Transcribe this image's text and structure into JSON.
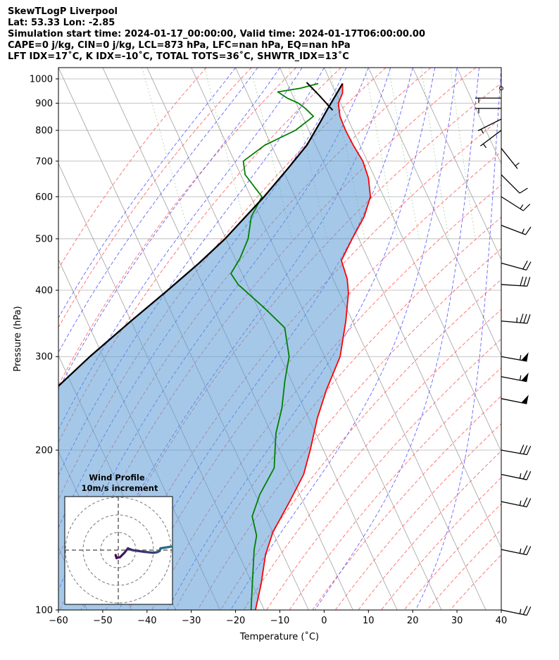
{
  "header": {
    "line1": "SkewTLogP Liverpool",
    "line2": "Lat: 53.33   Lon: -2.85",
    "line3": "Simulation start time: 2024-01-17_00:00:00, Valid time: 2024-01-17T06:00:00.00",
    "line4": "CAPE=0 j/kg, CIN=0 j/kg, LCL=873 hPa, LFC=nan hPa, EQ=nan hPa",
    "line5": "LFT IDX=17˚C, K IDX=-10˚C, TOTAL TOTS=36˚C, SHWTR_IDX=13˚C"
  },
  "chart_data": {
    "type": "line",
    "title": "SkewTLogP Liverpool",
    "xlabel": "Temperature (˚C)",
    "ylabel": "Pressure (hPa)",
    "xlim": [
      -60,
      40
    ],
    "ylim": [
      1050,
      100
    ],
    "y_scale": "log",
    "skew": true,
    "grid": true,
    "x_ticks": [
      "−60",
      "−50",
      "−40",
      "−30",
      "−20",
      "−10",
      "0",
      "10",
      "20",
      "30",
      "40"
    ],
    "y_ticks": [
      "100",
      "200",
      "300",
      "400",
      "500",
      "600",
      "700",
      "800",
      "900",
      "1000"
    ],
    "series": [
      {
        "name": "",
        "color": "#ff0000",
        "points": [
          [
            2.5,
            980
          ],
          [
            1.5,
            940
          ],
          [
            -0.5,
            900
          ],
          [
            -1.5,
            850
          ],
          [
            -1.7,
            800
          ],
          [
            -1.5,
            750
          ],
          [
            -1.0,
            700
          ],
          [
            -1.5,
            650
          ],
          [
            -3.0,
            600
          ],
          [
            -6.5,
            550
          ],
          [
            -11.5,
            500
          ],
          [
            -16.2,
            455
          ],
          [
            -16.8,
            420
          ],
          [
            -18.0,
            395
          ],
          [
            -21.5,
            350
          ],
          [
            -26.5,
            300
          ],
          [
            -33.0,
            260
          ],
          [
            -38.0,
            230
          ],
          [
            -43.0,
            200
          ],
          [
            -47.0,
            180
          ],
          [
            -53.0,
            160
          ],
          [
            -60.0,
            140
          ],
          [
            -64.0,
            127
          ],
          [
            -68.0,
            112
          ],
          [
            -72.0,
            100
          ]
        ]
      },
      {
        "name": "",
        "color": "#008000",
        "points": [
          [
            -3.0,
            980
          ],
          [
            -7.5,
            960
          ],
          [
            -13.0,
            945
          ],
          [
            -11.5,
            920
          ],
          [
            -9.5,
            900
          ],
          [
            -8.5,
            880
          ],
          [
            -7.5,
            850
          ],
          [
            -13.0,
            800
          ],
          [
            -21.5,
            750
          ],
          [
            -28.0,
            700
          ],
          [
            -29.0,
            660
          ],
          [
            -27.5,
            600
          ],
          [
            -32.0,
            550
          ],
          [
            -35.0,
            500
          ],
          [
            -38.8,
            460
          ],
          [
            -42.5,
            430
          ],
          [
            -42.0,
            410
          ],
          [
            -38.5,
            370
          ],
          [
            -36.0,
            340
          ],
          [
            -38.0,
            300
          ],
          [
            -41.5,
            270
          ],
          [
            -45.0,
            240
          ],
          [
            -49.0,
            215
          ],
          [
            -53.0,
            185
          ],
          [
            -59.0,
            165
          ],
          [
            -63.0,
            150
          ],
          [
            -64.0,
            138
          ],
          [
            -66.0,
            130
          ],
          [
            -70.0,
            112
          ],
          [
            -73.0,
            100
          ]
        ]
      },
      {
        "name": "",
        "color": "#000000",
        "points": [
          [
            2.5,
            980
          ],
          [
            -3.5,
            878
          ],
          [
            -6.5,
            830
          ],
          [
            -12.0,
            750
          ],
          [
            -18.5,
            680
          ],
          [
            -27.0,
            600
          ],
          [
            -33.3,
            550
          ],
          [
            -40.2,
            500
          ],
          [
            -48.6,
            450
          ],
          [
            -58.5,
            400
          ],
          [
            -70.0,
            350
          ],
          [
            -83.0,
            300
          ],
          [
            -97.5,
            250
          ],
          [
            -114.0,
            200
          ],
          [
            -133.0,
            150
          ],
          [
            -153.0,
            100
          ]
        ]
      },
      {
        "name": "",
        "color": "#000000",
        "points": [
          [
            -5.5,
            985
          ],
          [
            -4.0,
            930
          ],
          [
            -2.5,
            873
          ]
        ]
      }
    ],
    "barbs": [
      {
        "p": 100,
        "u": -24,
        "v": 5
      },
      {
        "p": 130,
        "u": -24,
        "v": 5
      },
      {
        "p": 160,
        "u": -24,
        "v": 5
      },
      {
        "p": 180,
        "u": -24,
        "v": 5
      },
      {
        "p": 200,
        "u": -28,
        "v": 5
      },
      {
        "p": 250,
        "u": -50,
        "v": 10
      },
      {
        "p": 275,
        "u": -52,
        "v": 10
      },
      {
        "p": 300,
        "u": -55,
        "v": 10
      },
      {
        "p": 350,
        "u": -34,
        "v": 3
      },
      {
        "p": 410,
        "u": -32,
        "v": 2
      },
      {
        "p": 450,
        "u": -18,
        "v": 5
      },
      {
        "p": 530,
        "u": -13,
        "v": 5
      },
      {
        "p": 600,
        "u": -11,
        "v": 7
      },
      {
        "p": 660,
        "u": -7,
        "v": 7
      },
      {
        "p": 740,
        "u": -4,
        "v": 5
      },
      {
        "p": 800,
        "u": 4,
        "v": 3
      },
      {
        "p": 840,
        "u": 4,
        "v": 2
      },
      {
        "p": 880,
        "u": 5,
        "v": 0
      },
      {
        "p": 920,
        "u": 4,
        "v": 0
      },
      {
        "p": 960,
        "u": 0,
        "v": 0
      }
    ],
    "hodograph": {
      "title": "Wind Profile",
      "subtitle": "10m/s increment",
      "rings": [
        10,
        20,
        30
      ],
      "points": [
        [
          -1.5,
          -2.8
        ],
        [
          -1.0,
          -4.5
        ],
        [
          1.0,
          -4.0
        ],
        [
          3.5,
          -1.5
        ],
        [
          5.5,
          1.0
        ],
        [
          8.0,
          0.0
        ],
        [
          15.0,
          -1.0
        ],
        [
          20.0,
          -1.5
        ],
        [
          22.0,
          -1.2
        ],
        [
          23.5,
          -0.5
        ],
        [
          24.0,
          1.0
        ],
        [
          27.0,
          1.5
        ],
        [
          30.0,
          2.0
        ],
        [
          32.0,
          1.8
        ]
      ]
    }
  }
}
